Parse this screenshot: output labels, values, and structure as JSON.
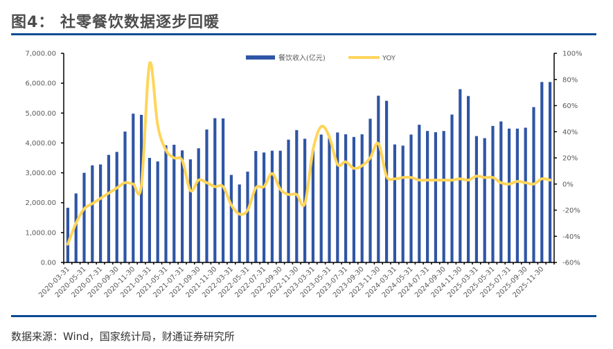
{
  "header": {
    "title": "图4：  社零餐饮数据逐步回暖"
  },
  "footer": {
    "source": "数据来源：Wind，国家统计局，财通证券研究所"
  },
  "colors": {
    "bar": "#2f55a4",
    "line": "#ffd55a",
    "rule": "#0a4a94",
    "axis": "#000000",
    "text": "#595959"
  },
  "chart_data": {
    "type": "bar",
    "title": "社零餐饮数据逐步回暖",
    "xlabel": "",
    "ylabel": "",
    "ylim": [
      0,
      7000
    ],
    "y2lim": [
      -60,
      100
    ],
    "grid": false,
    "legend_position": "top-center",
    "y_ticks": [
      "0.00",
      "1,000.00",
      "2,000.00",
      "3,000.00",
      "4,000.00",
      "5,000.00",
      "6,000.00",
      "7,000.00"
    ],
    "y_tick_values": [
      0,
      1000,
      2000,
      3000,
      4000,
      5000,
      6000,
      7000
    ],
    "y2_ticks": [
      "-60%",
      "-40%",
      "-20%",
      "0%",
      "20%",
      "40%",
      "60%",
      "80%",
      "100%"
    ],
    "y2_tick_values": [
      -60,
      -40,
      -20,
      0,
      20,
      40,
      60,
      80,
      100
    ],
    "x_tick_labels": [
      "2020-03-31",
      "2020-05-31",
      "2020-07-31",
      "2020-09-30",
      "2020-11-30",
      "2021-03-31",
      "2021-05-31",
      "2021-07-31",
      "2021-09-30",
      "2021-11-30",
      "2022-03-31",
      "2022-05-31",
      "2022-07-31",
      "2022-09-30",
      "2022-11-30",
      "2023-03-31",
      "2023-05-31",
      "2023-07-31",
      "2023-09-30",
      "2023-11-30",
      "2024-03-31",
      "2024-05-31",
      "2024-07-31",
      "2024-09-30",
      "2024-11-30",
      "2025-03-31",
      "2025-05-31",
      "2025-07-31",
      "2025-09-30",
      "2025-11-30"
    ],
    "x": [
      "2020-03",
      "2020-04",
      "2020-05",
      "2020-06",
      "2020-07",
      "2020-08",
      "2020-09",
      "2020-10",
      "2020-11",
      "2020-12",
      "2021-03",
      "2021-04",
      "2021-05",
      "2021-06",
      "2021-07",
      "2021-08",
      "2021-09",
      "2021-10",
      "2021-11",
      "2021-12",
      "2022-03",
      "2022-04",
      "2022-05",
      "2022-06",
      "2022-07",
      "2022-08",
      "2022-09",
      "2022-10",
      "2022-11",
      "2022-12",
      "2023-03",
      "2023-04",
      "2023-05",
      "2023-06",
      "2023-07",
      "2023-08",
      "2023-09",
      "2023-10",
      "2023-11",
      "2023-12",
      "2024-03",
      "2024-04",
      "2024-05",
      "2024-06",
      "2024-07",
      "2024-08",
      "2024-09",
      "2024-10",
      "2024-11",
      "2024-12",
      "2025-03",
      "2025-04",
      "2025-05",
      "2025-06",
      "2025-07",
      "2025-08",
      "2025-09",
      "2025-10",
      "2025-11",
      "2025-12"
    ],
    "series": [
      {
        "name": "餐饮收入(亿元)",
        "type": "bar",
        "axis": "left",
        "values": [
          1830,
          2310,
          3000,
          3250,
          3280,
          3600,
          3700,
          4380,
          4980,
          4940,
          3500,
          3380,
          3920,
          3940,
          3750,
          3450,
          3820,
          4450,
          4830,
          4820,
          2930,
          2610,
          3040,
          3730,
          3680,
          3740,
          3740,
          4110,
          4430,
          4140,
          3760,
          4280,
          4160,
          4350,
          4290,
          4200,
          4290,
          4810,
          5580,
          5410,
          3950,
          3910,
          4280,
          4610,
          4400,
          4360,
          4400,
          4950,
          5800,
          5570,
          4230,
          4160,
          4570,
          4720,
          4480,
          4480,
          4510,
          5200,
          6040,
          6040
        ]
      },
      {
        "name": "YOY",
        "type": "line",
        "axis": "right",
        "values": [
          -46,
          -30,
          -19,
          -15,
          -11,
          -7,
          -3,
          1,
          0,
          -1,
          92,
          45,
          26,
          20,
          18,
          -5,
          3,
          1,
          -2,
          -2,
          -16,
          -23,
          -20,
          -3,
          -2,
          8,
          -4,
          -8,
          -8,
          -15,
          26,
          44,
          36,
          15,
          17,
          12,
          14,
          20,
          31,
          6,
          4,
          5,
          5,
          3,
          3,
          3,
          3,
          3,
          4,
          3,
          6,
          5,
          5,
          1,
          0,
          2,
          1,
          0,
          4,
          3
        ]
      }
    ]
  }
}
